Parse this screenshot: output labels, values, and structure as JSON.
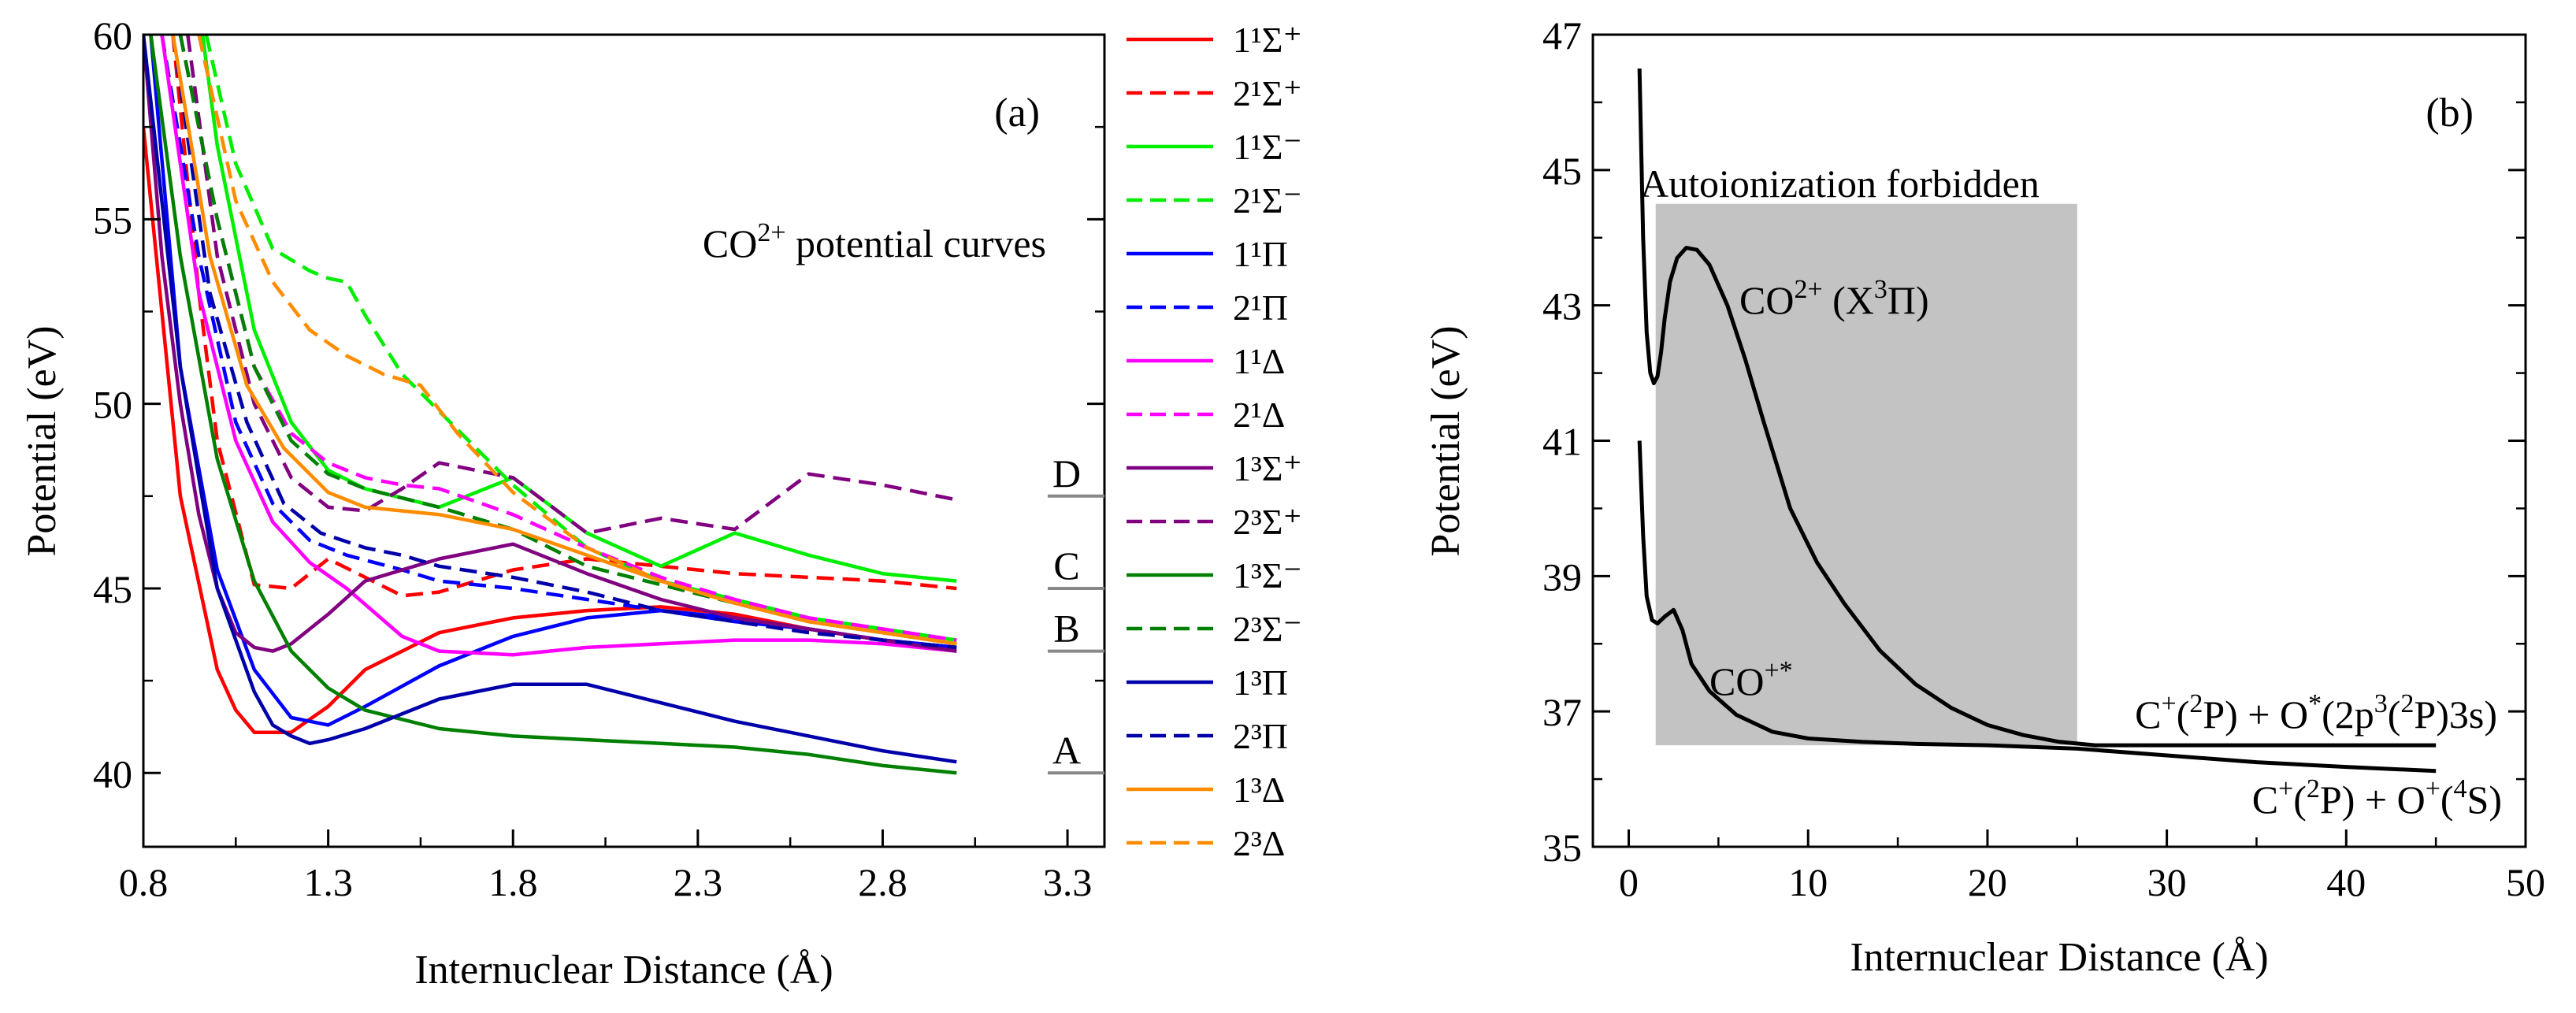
{
  "figure_title": "CO2+ potential curves and autoionization",
  "chart_data": [
    {
      "type": "line",
      "panel_label": "(a)",
      "title": "CO2+ potential curves",
      "xlabel": "Internuclear Distance (Å)",
      "ylabel": "Potential (eV)",
      "xlim": [
        0.8,
        3.4
      ],
      "ylim": [
        38,
        60
      ],
      "xticks": [
        0.8,
        1.3,
        1.8,
        2.3,
        2.8,
        3.3
      ],
      "yticks": [
        40,
        45,
        50,
        55,
        60
      ],
      "legend_position": "right-outside",
      "series": [
        {
          "name": "1¹Σ⁺",
          "color": "#ff0000",
          "dash": "solid",
          "x": [
            0.8,
            0.9,
            1.0,
            1.05,
            1.1,
            1.2,
            1.3,
            1.4,
            1.6,
            1.8,
            2.0,
            2.2,
            2.4,
            2.6,
            2.8,
            3.0
          ],
          "y": [
            57.5,
            47.5,
            42.8,
            41.7,
            41.1,
            41.1,
            41.8,
            42.8,
            43.8,
            44.2,
            44.4,
            44.5,
            44.3,
            43.9,
            43.6,
            43.4
          ]
        },
        {
          "name": "2¹Σ⁺",
          "color": "#ff0000",
          "dash": "dash",
          "x": [
            0.88,
            0.95,
            1.0,
            1.1,
            1.2,
            1.3,
            1.4,
            1.5,
            1.6,
            1.8,
            2.0,
            2.2,
            2.4,
            2.6,
            2.8,
            3.0
          ],
          "y": [
            60,
            53,
            49,
            45.1,
            45.0,
            45.8,
            45.3,
            44.8,
            44.9,
            45.5,
            45.8,
            45.6,
            45.4,
            45.3,
            45.2,
            45.0
          ]
        },
        {
          "name": "1¹Σ⁻",
          "color": "#00ee00",
          "dash": "solid",
          "x": [
            0.96,
            1.0,
            1.1,
            1.2,
            1.3,
            1.4,
            1.6,
            1.8,
            2.0,
            2.2,
            2.4,
            2.6,
            2.8,
            3.0
          ],
          "y": [
            60,
            57,
            52,
            49.5,
            48.2,
            47.7,
            47.2,
            48.0,
            46.5,
            45.6,
            46.5,
            45.9,
            45.4,
            45.2
          ]
        },
        {
          "name": "2¹Σ⁻",
          "color": "#00ee00",
          "dash": "dash",
          "x": [
            0.97,
            1.05,
            1.15,
            1.25,
            1.3,
            1.35,
            1.4,
            1.5,
            1.6,
            1.8,
            2.0,
            2.2,
            2.4,
            2.6,
            2.8,
            3.0
          ],
          "y": [
            60,
            56.5,
            54.2,
            53.6,
            53.4,
            53.3,
            52.4,
            50.8,
            49.8,
            47.8,
            46.1,
            45.2,
            44.7,
            44.2,
            43.9,
            43.6
          ]
        },
        {
          "name": "1¹Π",
          "color": "#0000ff",
          "dash": "solid",
          "x": [
            0.82,
            0.9,
            1.0,
            1.1,
            1.2,
            1.3,
            1.4,
            1.6,
            1.8,
            2.0,
            2.2,
            2.4,
            2.6,
            2.8,
            3.0
          ],
          "y": [
            60,
            51,
            45.5,
            42.8,
            41.5,
            41.3,
            41.8,
            42.9,
            43.7,
            44.2,
            44.4,
            44.2,
            43.9,
            43.6,
            43.4
          ]
        },
        {
          "name": "2¹Π",
          "color": "#0000ff",
          "dash": "dash",
          "x": [
            0.85,
            0.95,
            1.05,
            1.15,
            1.25,
            1.35,
            1.5,
            1.6,
            1.8,
            2.0,
            2.2,
            2.4,
            2.6,
            2.8,
            3.0
          ],
          "y": [
            60,
            54,
            49.5,
            47.3,
            46.3,
            45.9,
            45.5,
            45.2,
            45.0,
            44.7,
            44.4,
            44.1,
            43.9,
            43.6,
            43.4
          ]
        },
        {
          "name": "1¹Δ",
          "color": "#ff00ff",
          "dash": "solid",
          "x": [
            0.85,
            0.95,
            1.05,
            1.15,
            1.25,
            1.35,
            1.5,
            1.6,
            1.8,
            2.0,
            2.2,
            2.4,
            2.6,
            2.8,
            3.0
          ],
          "y": [
            60,
            53,
            49,
            46.8,
            45.7,
            45.0,
            43.7,
            43.3,
            43.2,
            43.4,
            43.5,
            43.6,
            43.6,
            43.5,
            43.3
          ]
        },
        {
          "name": "2¹Δ",
          "color": "#ff00ff",
          "dash": "dash",
          "x": [
            0.9,
            1.0,
            1.1,
            1.2,
            1.3,
            1.4,
            1.5,
            1.6,
            1.8,
            2.0,
            2.2,
            2.4,
            2.6,
            2.8,
            3.0
          ],
          "y": [
            60,
            55,
            51,
            49.2,
            48.4,
            48.0,
            47.8,
            47.7,
            47.0,
            46.1,
            45.3,
            44.7,
            44.2,
            43.9,
            43.6
          ]
        },
        {
          "name": "1³Σ⁺",
          "color": "#800080",
          "dash": "solid",
          "x": [
            0.8,
            0.85,
            0.9,
            0.95,
            1.0,
            1.05,
            1.1,
            1.15,
            1.2,
            1.3,
            1.4,
            1.6,
            1.8,
            2.0,
            2.2,
            2.4,
            2.6,
            2.8,
            3.0
          ],
          "y": [
            60,
            54,
            50,
            47,
            45,
            43.8,
            43.4,
            43.3,
            43.5,
            44.3,
            45.2,
            45.8,
            46.2,
            45.4,
            44.7,
            44.2,
            43.9,
            43.6,
            43.3
          ]
        },
        {
          "name": "2³Σ⁺",
          "color": "#800080",
          "dash": "dash",
          "x": [
            0.92,
            1.0,
            1.1,
            1.2,
            1.3,
            1.4,
            1.5,
            1.6,
            1.8,
            2.0,
            2.2,
            2.4,
            2.6,
            2.8,
            3.0
          ],
          "y": [
            60,
            54,
            50,
            48,
            47.2,
            47.1,
            47.7,
            48.4,
            48.0,
            46.5,
            46.9,
            46.6,
            48.1,
            47.8,
            47.4
          ]
        },
        {
          "name": "1³Σ⁻",
          "color": "#008000",
          "dash": "solid",
          "x": [
            0.82,
            0.9,
            1.0,
            1.1,
            1.2,
            1.3,
            1.4,
            1.6,
            1.8,
            2.0,
            2.2,
            2.4,
            2.6,
            2.8,
            3.0
          ],
          "y": [
            60,
            54,
            48.5,
            45.2,
            43.3,
            42.3,
            41.7,
            41.2,
            41.0,
            40.9,
            40.8,
            40.7,
            40.5,
            40.2,
            40.0
          ]
        },
        {
          "name": "2³Σ⁻",
          "color": "#008000",
          "dash": "dash",
          "x": [
            0.9,
            1.0,
            1.1,
            1.2,
            1.3,
            1.4,
            1.6,
            1.8,
            2.0,
            2.2,
            2.4,
            2.6,
            2.8,
            3.0
          ],
          "y": [
            60,
            55,
            51,
            49,
            48.1,
            47.7,
            47.2,
            46.6,
            45.6,
            45.1,
            44.6,
            44.1,
            43.8,
            43.5
          ]
        },
        {
          "name": "1³Π",
          "color": "#0000aa",
          "dash": "solid",
          "x": [
            0.8,
            0.9,
            1.0,
            1.1,
            1.15,
            1.2,
            1.25,
            1.3,
            1.4,
            1.6,
            1.8,
            2.0,
            2.2,
            2.4,
            2.6,
            2.8,
            3.0
          ],
          "y": [
            60,
            51,
            45,
            42.2,
            41.3,
            41.0,
            40.8,
            40.9,
            41.2,
            42.0,
            42.4,
            42.4,
            41.9,
            41.4,
            41.0,
            40.6,
            40.3
          ]
        },
        {
          "name": "2³Π",
          "color": "#0000aa",
          "dash": "dash",
          "x": [
            0.88,
            0.98,
            1.08,
            1.18,
            1.28,
            1.4,
            1.5,
            1.6,
            1.8,
            2.0,
            2.2,
            2.4,
            2.6,
            2.8,
            3.0
          ],
          "y": [
            60,
            53,
            49.5,
            47.3,
            46.5,
            46.1,
            45.9,
            45.6,
            45.3,
            44.9,
            44.4,
            44.1,
            43.8,
            43.6,
            43.4
          ]
        },
        {
          "name": "1³Δ",
          "color": "#ff8c00",
          "dash": "solid",
          "x": [
            0.88,
            0.98,
            1.08,
            1.18,
            1.3,
            1.4,
            1.6,
            1.8,
            2.0,
            2.2,
            2.4,
            2.6,
            2.8,
            3.0
          ],
          "y": [
            60,
            54,
            50.5,
            48.8,
            47.6,
            47.2,
            47.0,
            46.6,
            45.9,
            45.2,
            44.6,
            44.1,
            43.8,
            43.5
          ]
        },
        {
          "name": "2³Δ",
          "color": "#ff8c00",
          "dash": "dash",
          "x": [
            0.95,
            1.05,
            1.15,
            1.25,
            1.35,
            1.45,
            1.55,
            1.65,
            1.8,
            2.0,
            2.2,
            2.4,
            2.6,
            2.8,
            3.0
          ],
          "y": [
            60,
            55.5,
            53.3,
            52.0,
            51.3,
            50.8,
            50.5,
            49.2,
            47.6,
            46.1,
            45.2,
            44.6,
            44.1,
            43.8,
            43.5
          ]
        }
      ],
      "markers": [
        {
          "label": "D",
          "y": 47.5
        },
        {
          "label": "C",
          "y": 45.0
        },
        {
          "label": "B",
          "y": 43.3
        },
        {
          "label": "A",
          "y": 40.0
        }
      ]
    },
    {
      "type": "line",
      "panel_label": "(b)",
      "xlabel": "Internuclear Distance (Å)",
      "ylabel": "Potential (eV)",
      "xlim": [
        -2,
        50
      ],
      "ylim": [
        35,
        47
      ],
      "xticks": [
        0,
        10,
        20,
        30,
        40,
        50
      ],
      "yticks": [
        35,
        37,
        39,
        41,
        43,
        45,
        47
      ],
      "shaded_region": {
        "label": "Autoionization forbidden",
        "x": [
          1.5,
          25
        ],
        "y": [
          36.5,
          44.5
        ]
      },
      "series": [
        {
          "name": "CO2+ (X3Π)",
          "color": "#000000",
          "dash": "solid",
          "x": [
            0.6,
            0.8,
            1.0,
            1.2,
            1.4,
            1.6,
            1.8,
            2.0,
            2.3,
            2.7,
            3.2,
            3.8,
            4.5,
            5.5,
            6.5,
            7.5,
            9,
            10.5,
            12,
            14,
            16,
            18,
            20,
            22,
            24,
            26,
            30,
            35,
            40,
            45
          ],
          "y": [
            46.5,
            44.0,
            42.6,
            42.0,
            41.85,
            41.95,
            42.3,
            42.8,
            43.35,
            43.7,
            43.85,
            43.82,
            43.6,
            43.0,
            42.2,
            41.3,
            40.0,
            39.2,
            38.6,
            37.9,
            37.4,
            37.05,
            36.8,
            36.65,
            36.55,
            36.5,
            36.5,
            36.5,
            36.5,
            36.5
          ]
        },
        {
          "name": "CO+*",
          "color": "#000000",
          "dash": "solid",
          "x": [
            0.6,
            0.8,
            1.0,
            1.3,
            1.6,
            2.0,
            2.5,
            3.0,
            3.5,
            4.5,
            6,
            8,
            10,
            13,
            16,
            20,
            25,
            30,
            35,
            40,
            45
          ],
          "y": [
            41.0,
            39.6,
            38.7,
            38.35,
            38.3,
            38.4,
            38.5,
            38.2,
            37.7,
            37.3,
            36.95,
            36.7,
            36.6,
            36.55,
            36.52,
            36.5,
            36.45,
            36.35,
            36.25,
            36.18,
            36.12
          ]
        }
      ],
      "annotations": [
        {
          "text": "Autoionization forbidden"
        },
        {
          "text": "CO2+ (X3Π)"
        },
        {
          "text": "CO+*"
        },
        {
          "text": "C+(2P) + O*(2p3(2P)3s)"
        },
        {
          "text": "C+(2P) + O+(4S)"
        }
      ]
    }
  ]
}
